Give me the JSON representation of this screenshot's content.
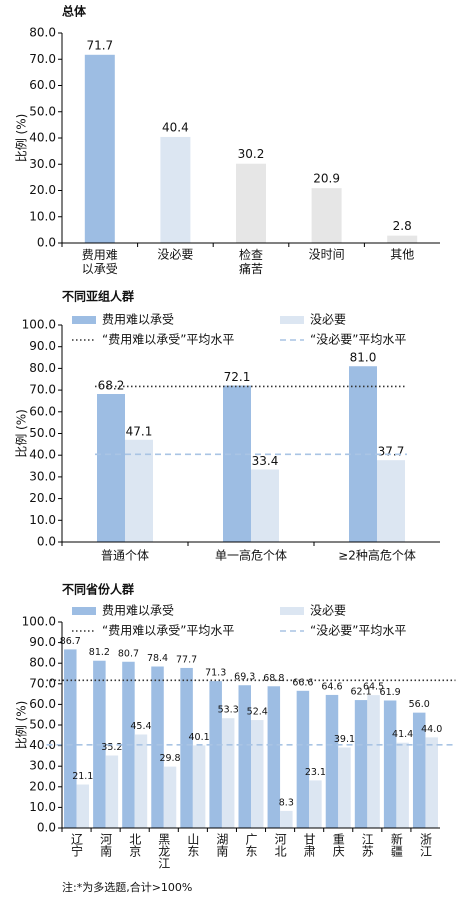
{
  "chart_data": [
    {
      "type": "bar",
      "title": "总体",
      "y_label": "比例 (%)",
      "categories": [
        "费用难以承受",
        "没必要",
        "检查痛苦",
        "没时间",
        "其他"
      ],
      "values": [
        71.7,
        40.4,
        30.2,
        20.9,
        2.8
      ],
      "colors": [
        "#9dbde3",
        "#dce6f2",
        "#e6e6e6",
        "#e6e6e6",
        "#e6e6e6"
      ],
      "ylim": [
        0,
        80
      ],
      "yticks": [
        {
          "value": 0,
          "label": "0.0"
        },
        {
          "value": 10,
          "label": "10.0"
        },
        {
          "value": 20,
          "label": "20.0"
        },
        {
          "value": 30,
          "label": "30.0"
        },
        {
          "value": 40,
          "label": "40.0"
        },
        {
          "value": 50,
          "label": "50.0"
        },
        {
          "value": 60,
          "label": "60.0"
        },
        {
          "value": 70,
          "label": "70.0"
        },
        {
          "value": 80,
          "label": "80.0"
        }
      ]
    },
    {
      "type": "grouped_bar",
      "title": "不同亚组人群",
      "y_label": "比例 (%)",
      "categories": [
        "普通个体",
        "单一高危个体",
        "≥2种高危个体"
      ],
      "series": [
        {
          "name": "费用难以承受",
          "color": "#9dbde3",
          "values": [
            68.2,
            72.1,
            81.0
          ],
          "value_labels": [
            "68.2",
            "72.1",
            "81.0"
          ]
        },
        {
          "name": "没必要",
          "color": "#dce6f2",
          "values": [
            47.1,
            33.4,
            37.7
          ],
          "value_labels": [
            "47.1",
            "33.4",
            "37.7"
          ]
        }
      ],
      "reference_lines": [
        {
          "name": "“费用难以承受”平均水平",
          "value": 71.7,
          "color": "#333333",
          "style": "dotted"
        },
        {
          "name": "“没必要”平均水平",
          "value": 40.4,
          "color": "#a9c4e4",
          "style": "dashed"
        }
      ],
      "ylim": [
        0,
        100
      ],
      "yticks": [
        {
          "value": 0,
          "label": "0.0"
        },
        {
          "value": 10,
          "label": "10.0"
        },
        {
          "value": 20,
          "label": "20.0"
        },
        {
          "value": 30,
          "label": "30.0"
        },
        {
          "value": 40,
          "label": "40.0"
        },
        {
          "value": 50,
          "label": "50.0"
        },
        {
          "value": 60,
          "label": "60.0"
        },
        {
          "value": 70,
          "label": "70.0"
        },
        {
          "value": 80,
          "label": "80.0"
        },
        {
          "value": 90,
          "label": "90.0"
        },
        {
          "value": 100,
          "label": "100.0"
        }
      ]
    },
    {
      "type": "grouped_bar",
      "title": "不同省份人群",
      "y_label": "比例 (%)",
      "categories": [
        "辽宁",
        "河南",
        "北京",
        "黑龙江",
        "山东",
        "湖南",
        "广东",
        "河北",
        "甘肃",
        "重庆",
        "江苏",
        "新疆",
        "浙江"
      ],
      "series": [
        {
          "name": "费用难以承受",
          "color": "#9dbde3",
          "values": [
            86.7,
            81.2,
            80.7,
            78.4,
            77.7,
            71.3,
            69.3,
            68.8,
            66.6,
            64.6,
            62.1,
            61.9,
            56.0
          ],
          "value_labels": [
            "86.7",
            "81.2",
            "80.7",
            "78.4",
            "77.7",
            "71.3",
            "69.3",
            "68.8",
            "66.6",
            "64.6",
            "62.1",
            "61.9",
            "56.0"
          ]
        },
        {
          "name": "没必要",
          "color": "#dce6f2",
          "values": [
            21.1,
            35.2,
            45.4,
            29.8,
            40.1,
            53.3,
            52.4,
            8.3,
            23.1,
            39.1,
            64.5,
            41.4,
            44.0
          ],
          "value_labels": [
            "21.1",
            "35.2",
            "45.4",
            "29.8",
            "40.1",
            "53.3",
            "52.4",
            "8.3",
            "23.1",
            "39.1",
            "64.5",
            "41.4",
            "44.0"
          ]
        }
      ],
      "reference_lines": [
        {
          "name": "“费用难以承受”平均水平",
          "value": 71.7,
          "color": "#333333",
          "style": "dotted"
        },
        {
          "name": "“没必要”平均水平",
          "value": 40.4,
          "color": "#a9c4e4",
          "style": "dashed"
        }
      ],
      "ylim": [
        0,
        100
      ],
      "yticks": [
        {
          "value": 0,
          "label": "0.0"
        },
        {
          "value": 10,
          "label": "10.0"
        },
        {
          "value": 20,
          "label": "20.0"
        },
        {
          "value": 30,
          "label": "30.0"
        },
        {
          "value": 40,
          "label": "40.0"
        },
        {
          "value": 50,
          "label": "50.0"
        },
        {
          "value": 60,
          "label": "60.0"
        },
        {
          "value": 70,
          "label": "70.0"
        },
        {
          "value": 80,
          "label": "80.0"
        },
        {
          "value": 90,
          "label": "90.0"
        },
        {
          "value": 100,
          "label": "100.0"
        }
      ]
    }
  ],
  "note": "注:*为多选题,合计>100%"
}
